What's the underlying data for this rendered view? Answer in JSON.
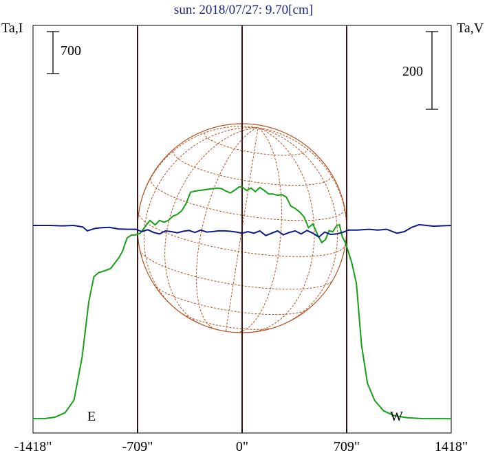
{
  "title": "sun: 2018/07/27: 9.70[cm]",
  "left_axis_label": "Ta,I",
  "right_axis_label": "Ta,V",
  "scale_bars": {
    "left": "700",
    "right": "200"
  },
  "markers": {
    "east": "E",
    "west": "W"
  },
  "colors": {
    "intensity": "#14a014",
    "polarization": "#0a1a8c",
    "solar_disk": "#b4501e",
    "limb_lines": "#3c1414",
    "title": "#1a237e"
  },
  "chart_data": {
    "type": "line",
    "title": "sun: 2018/07/27: 9.70[cm]",
    "x_ticks": [
      "-1418\"",
      "-709\"",
      "0\"",
      "709\"",
      "1418\""
    ],
    "x_tick_values": [
      -1418,
      -709,
      0,
      709,
      1418
    ],
    "xlim": [
      -1418,
      1418
    ],
    "vertical_lines": [
      -709,
      0,
      709
    ],
    "series": [
      {
        "name": "Ta,I",
        "axis": "left",
        "x": [
          -1418,
          -1340,
          -1270,
          -1200,
          -1140,
          -1085,
          -1040,
          -1005,
          -975,
          -950,
          -920,
          -890,
          -860,
          -835,
          -810,
          -780,
          -750,
          -720,
          -690,
          -660,
          -625,
          -590,
          -560,
          -530,
          -500,
          -470,
          -440,
          -410,
          -380,
          -350,
          -320,
          -290,
          -260,
          -230,
          -200,
          -170,
          -140,
          -110,
          -80,
          -50,
          -20,
          0,
          30,
          60,
          90,
          120,
          150,
          180,
          210,
          240,
          270,
          300,
          330,
          360,
          390,
          420,
          450,
          480,
          510,
          540,
          565,
          590,
          615,
          640,
          660,
          680,
          700,
          720,
          745,
          775,
          810,
          850,
          900,
          960,
          1030,
          1120,
          1220,
          1418
        ],
        "y": [
          10,
          12,
          35,
          110,
          320,
          1040,
          1955,
          2380,
          2445,
          2465,
          2490,
          2520,
          2620,
          2700,
          2810,
          3030,
          3075,
          3080,
          3110,
          3210,
          3320,
          3245,
          3320,
          3290,
          3320,
          3390,
          3420,
          3480,
          3600,
          3790,
          3810,
          3820,
          3830,
          3840,
          3850,
          3860,
          3850,
          3810,
          3780,
          3825,
          3880,
          3880,
          3820,
          3860,
          3800,
          3870,
          3820,
          3760,
          3760,
          3740,
          3750,
          3710,
          3560,
          3520,
          3460,
          3380,
          3200,
          3260,
          3090,
          2950,
          3000,
          3150,
          3130,
          3230,
          3250,
          3040,
          2950,
          2800,
          2600,
          2270,
          1230,
          600,
          310,
          140,
          60,
          25,
          12,
          8
        ]
      },
      {
        "name": "Ta,V",
        "axis": "right",
        "x": [
          -1418,
          -1300,
          -1220,
          -1140,
          -1080,
          -1050,
          -1000,
          -960,
          -900,
          -840,
          -780,
          -720,
          -680,
          -640,
          -600,
          -560,
          -520,
          -480,
          -440,
          -400,
          -360,
          -320,
          -280,
          -240,
          -200,
          -160,
          -120,
          -80,
          -40,
          0,
          40,
          80,
          120,
          160,
          200,
          240,
          280,
          320,
          360,
          400,
          440,
          480,
          520,
          560,
          600,
          640,
          680,
          720,
          780,
          860,
          920,
          980,
          1050,
          1100,
          1150,
          1200,
          1300,
          1418
        ],
        "y": [
          0,
          0,
          -1,
          0,
          -4,
          -14,
          -8,
          -6,
          -5,
          -9,
          -10,
          -10,
          -16,
          -11,
          -18,
          -22,
          -14,
          -16,
          -19,
          -15,
          -13,
          -18,
          -12,
          -17,
          -16,
          -14,
          -14,
          -15,
          -17,
          -20,
          -16,
          -20,
          -14,
          -26,
          -20,
          -14,
          -24,
          -18,
          -14,
          -22,
          -13,
          -20,
          -30,
          -17,
          -23,
          -22,
          -18,
          -12,
          -12,
          -10,
          -12,
          -10,
          -20,
          -16,
          -5,
          2,
          -2,
          0
        ]
      }
    ],
    "solar_disk": {
      "radius_arcsec": 709
    },
    "left_scale_bar_value": 700,
    "right_scale_bar_value": 200
  }
}
